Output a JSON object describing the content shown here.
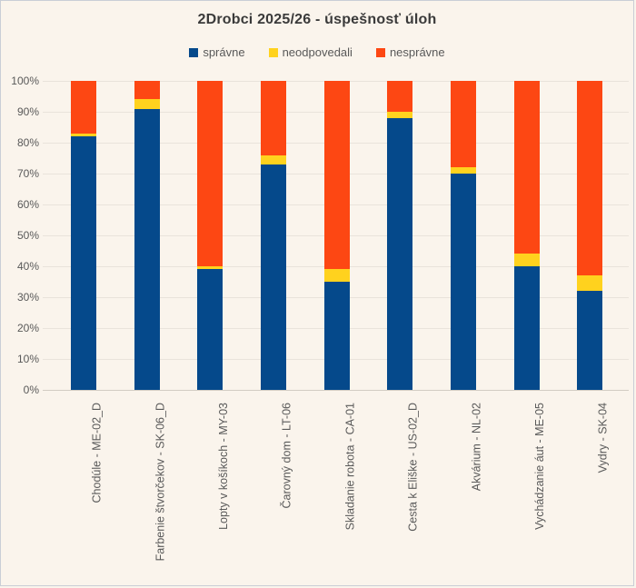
{
  "chart_data": {
    "type": "bar",
    "stacked": true,
    "orientation": "vertical",
    "title": "2Drobci 2025/26 - úspešnosť úloh",
    "categories": [
      "Chodúle - ME-02_D",
      "Farbenie štvorčekov - SK-06_D",
      "Lopty v košíkoch - MY-03",
      "Čarovný dom - LT-06",
      "Skladanie robota - CA-01",
      "Cesta k Eliške - US-02_D",
      "Akvárium - NL-02",
      "Vychádzanie áut - ME-05",
      "Vydry - SK-04"
    ],
    "series": [
      {
        "name": "správne",
        "color": "#05498b",
        "values": [
          82,
          91,
          39,
          73,
          35,
          88,
          70,
          40,
          32
        ]
      },
      {
        "name": "neodpovedali",
        "color": "#ffd21e",
        "values": [
          1,
          3,
          1,
          3,
          4,
          2,
          2,
          4,
          5
        ]
      },
      {
        "name": "nesprávne",
        "color": "#fd4713",
        "values": [
          17,
          6,
          60,
          24,
          61,
          10,
          28,
          56,
          63
        ]
      }
    ],
    "xlabel": "",
    "ylabel": "",
    "ylim": [
      0,
      100
    ],
    "y_ticks": [
      "0%",
      "10%",
      "20%",
      "30%",
      "40%",
      "50%",
      "60%",
      "70%",
      "80%",
      "90%",
      "100%"
    ],
    "y_tick_step": 10,
    "grid": true,
    "legend_position": "top",
    "value_format": "percent"
  },
  "colors": {
    "background": "#faf4ec",
    "frame_border": "#c9ced6",
    "gridline": "#e9e3db",
    "axis_line": "#d2ccc3",
    "title_text": "#3a3a3a",
    "tick_text": "#595959"
  }
}
